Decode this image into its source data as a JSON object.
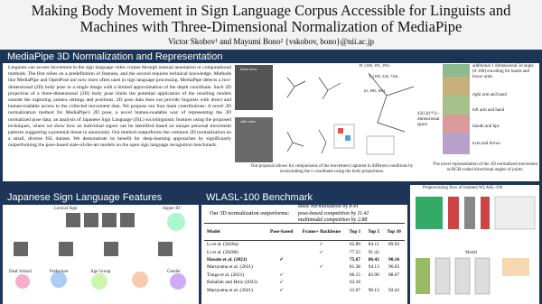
{
  "header": {
    "title_lines": [
      "Making Body Movement in Sign Language Corpus Accessible for Linguists and",
      "Machines with Three-Dimensional Normalization of MediaPipe"
    ],
    "authors": "Victor Skobov¹ and Mayumi Bono² {vskobov, bono}@nii.ac.jp"
  },
  "section1": {
    "heading": "MediaPipe 3D Normalization and Representation",
    "paragraph": "Linguists can access movement in the sign language video corpus through manual annotation or computational methods. The first relies on a predefinition of features, and the second requires technical knowledge. Methods like MediaPipe and OpenPose are now more often used in sign language processing. MediaPipe detects a two-dimensional (2D) body pose in a single image with a limited approximation of the depth coordinate. Such 2D projection of a three-dimensional (3D) body pose limits the potential application of the resulting models outside the capturing camera settings and positions. 2D pose data does not provide linguists with direct and human-tradable access to the collected movement data. We propose our four main contributions: A novel 3D normalization method for MediaPipe's 2D pose, a novel human-readable way of representing the 3D normalized pose data, an analysis of Japanese Sign Language (JSL) sociolinguistic features using the proposed techniques, where we show how an individual signer can be identified based on unique personal movement patterns suggesting a potential threat to anonymity. Our method outperforms the common 2D normalization on a small, diverse JSL dataset. We demonstrate its benefit for deep-learning approaches by significantly outperforming the pose-based state-of-the-art models on the open sign language recognition benchmark.",
    "figure1": {
      "labels": [
        "front view",
        "side view",
        "D. (138, 191, 191)",
        "T. (185, 226, 743)",
        "(0, 180, 181)"
      ],
      "caption": "Our proposal allows for comparisons of the movement captured in different conditions by recalculating the z coordinate using the body proportions."
    },
    "figure2": {
      "top_label": "frames",
      "labels": [
        "additional 1 dimensional 3d angle (0-180) encoding for hands and lower arms",
        "right arm and hand",
        "left arm and hand",
        "mouth and lips",
        "eyes and brows"
      ],
      "space_label": "42(1)(1*3) - dimensional space",
      "caption": "The novel representation of the 3D normalized movement as RGB-coded directional angles of joints."
    }
  },
  "section2": {
    "heading": "Japanese Sign Language Features",
    "labels": [
      "Lexical Sign",
      "Signer ID",
      "Deaf School",
      "Prefecture",
      "Age Group",
      "Gender"
    ]
  },
  "section3": {
    "heading": "WLASL-100 Benchmark",
    "intro": "Our 3D normalization outperforms:",
    "claims": [
      "basic normalization by 8.41",
      "pose-based competition by 11.41",
      "multimodal competition by 2.88"
    ],
    "table": {
      "columns": [
        "Model",
        "Pose-based",
        "Frame+ Backbone",
        "Top 1",
        "Top 5",
        "Top 10"
      ],
      "rows": [
        [
          "Li et al. (2020a)",
          null,
          "✓",
          "65.89",
          "84.11",
          "89.92"
        ],
        [
          "Li et al. (2020b)",
          null,
          "✓",
          "77.55",
          "91.42",
          null
        ],
        [
          "Hosain et al. (2021)",
          "✓",
          null,
          "75.67",
          "86.42",
          "90.16"
        ],
        [
          "Maruyama et al. (2021)",
          null,
          "✓",
          "81.38",
          "94.13",
          "96.05"
        ],
        [
          "Tunga et al. (2021)",
          "✓",
          null,
          "60.15",
          "83.98",
          "88.67"
        ],
        [
          "Boháček and Hrúz (2022)",
          "✓",
          null,
          "63.18",
          null,
          null
        ],
        [
          "Maruyama et al. (2021)",
          "✓",
          null,
          "31.07",
          "90.13",
          "92.42"
        ]
      ]
    }
  },
  "section4": {
    "caption": "Preprocessing flow of isolated WLASL-100",
    "model_label": "Model"
  }
}
